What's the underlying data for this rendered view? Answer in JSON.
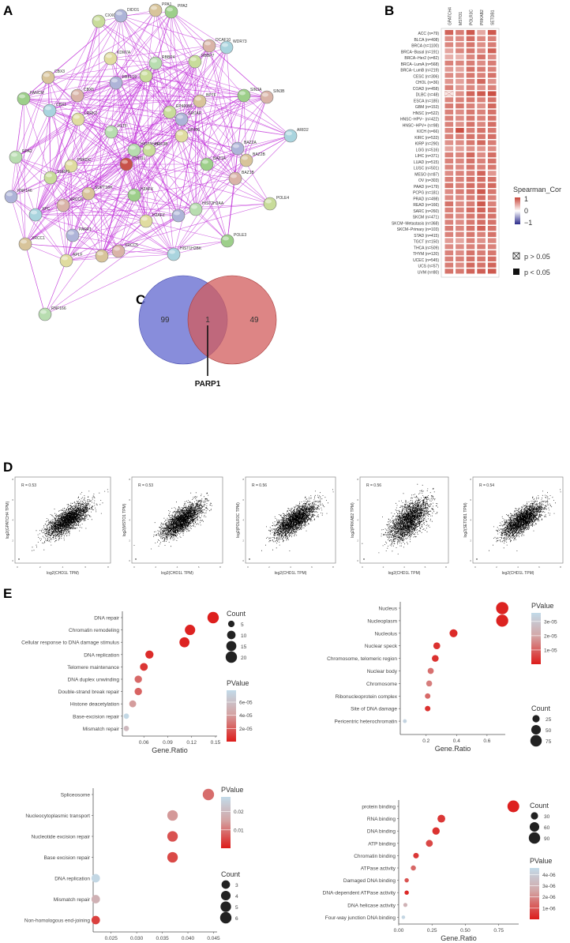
{
  "panels": {
    "a": "A",
    "b": "B",
    "c": "C",
    "d": "D",
    "e": "E"
  },
  "colors": {
    "edge": "#c030d8",
    "heat_high": "#c8463a",
    "heat_low": "#2a2a8a",
    "p_low": "#dd1c1a",
    "p_high": "#c2dbe9",
    "venn_left": "#6a70d2",
    "venn_right": "#d25c5c"
  },
  "network": {
    "nodes": [
      "CXXC1",
      "DIDO1",
      "PPA1",
      "PPA2",
      "DCAF10",
      "WDR73",
      "KDM7A",
      "RBBP4",
      "RBBP7",
      "FBXL19",
      "CBX3",
      "FANCM",
      "CBX5",
      "CBX1",
      "LRRK2",
      "HLTF",
      "EP400NL",
      "SRCAP",
      "BPTF",
      "SIN3A",
      "SIN3B",
      "ARID2",
      "EP400",
      "HIST1H4F",
      "H3F3B",
      "BAZ2A",
      "BAZ2B",
      "BAZ1A",
      "BAZ1B",
      "CHD1L",
      "PRKDC",
      "RPA2",
      "SSRP1",
      "RNF146",
      "SUPT16H",
      "H2AFX",
      "XRCC6",
      "XPC",
      "H2AFZ",
      "HIST2H2AA",
      "POLE4",
      "PARP1",
      "XRCC1",
      "POLE3",
      "XRCC5",
      "HIST1H2BK",
      "APLF",
      "RNF166"
    ]
  },
  "chart_data": [
    {
      "type": "heatmap",
      "title": "",
      "columns": [
        "GPATCH4",
        "MSTO1",
        "POLR3C",
        "PRKAB2",
        "SETDB1"
      ],
      "rows": [
        "ACC (n=79)",
        "BLCA (n=408)",
        "BRCA (n=1100)",
        "BRCA−Basal (n=191)",
        "BRCA−Her2 (n=82)",
        "BRCA−LumA (n=568)",
        "BRCA−LumB (n=219)",
        "CESC (n=306)",
        "CHOL (n=36)",
        "COAD (n=458)",
        "DLBC (n=48)",
        "ESCA (n=185)",
        "GBM (n=153)",
        "HNSC (n=522)",
        "HNSC−HPV− (n=422)",
        "HNSC−HPV+ (n=98)",
        "KICH (n=66)",
        "KIRC (n=533)",
        "KIRP (n=290)",
        "LGG (n=516)",
        "LIHC (n=371)",
        "LUAD (n=515)",
        "LUSC (n=501)",
        "MESO (n=87)",
        "OV (n=303)",
        "PAAD (n=179)",
        "PCPG (n=181)",
        "PRAD (n=498)",
        "READ (n=166)",
        "SARC (n=260)",
        "SKCM (n=471)",
        "SKCM−Metastasis (n=368)",
        "SKCM−Primary (n=103)",
        "STAD (n=415)",
        "TGCT (n=150)",
        "THCA (n=509)",
        "THYM (n=120)",
        "UCEC (n=545)",
        "UCS (n=57)",
        "UVM (n=80)"
      ],
      "values": [
        [
          0.62,
          0.52,
          0.66,
          0.35,
          0.66
        ],
        [
          0.45,
          0.46,
          0.58,
          0.47,
          0.5
        ],
        [
          0.48,
          0.46,
          0.55,
          0.45,
          0.52
        ],
        [
          0.36,
          0.48,
          0.55,
          0.46,
          0.63
        ],
        [
          0.32,
          0.3,
          0.48,
          0.56,
          0.46
        ],
        [
          0.5,
          0.48,
          0.52,
          0.46,
          0.52
        ],
        [
          0.4,
          0.36,
          0.56,
          0.52,
          0.5
        ],
        [
          0.46,
          0.44,
          0.54,
          0.5,
          0.56
        ],
        [
          0.42,
          0.38,
          0.5,
          0.6,
          0.44
        ],
        [
          0.5,
          0.4,
          0.48,
          0.44,
          0.5
        ],
        [
          0.05,
          0.44,
          0.62,
          0.66,
          0.7
        ],
        [
          0.48,
          0.5,
          0.54,
          0.5,
          0.56
        ],
        [
          0.52,
          0.54,
          0.5,
          0.44,
          0.6
        ],
        [
          0.5,
          0.46,
          0.54,
          0.5,
          0.56
        ],
        [
          0.5,
          0.46,
          0.54,
          0.5,
          0.56
        ],
        [
          0.5,
          0.44,
          0.56,
          0.48,
          0.58
        ],
        [
          0.48,
          0.7,
          0.52,
          0.56,
          0.54
        ],
        [
          0.5,
          0.5,
          0.56,
          0.54,
          0.58
        ],
        [
          0.44,
          0.46,
          0.54,
          0.6,
          0.52
        ],
        [
          0.36,
          0.38,
          0.44,
          0.42,
          0.46
        ],
        [
          0.5,
          0.48,
          0.6,
          0.46,
          0.58
        ],
        [
          0.5,
          0.48,
          0.56,
          0.5,
          0.56
        ],
        [
          0.48,
          0.46,
          0.54,
          0.5,
          0.54
        ],
        [
          0.46,
          0.5,
          0.52,
          0.62,
          0.42
        ],
        [
          0.5,
          0.5,
          0.56,
          0.58,
          0.56
        ],
        [
          0.54,
          0.5,
          0.58,
          0.56,
          0.6
        ],
        [
          0.46,
          0.52,
          0.56,
          0.66,
          0.54
        ],
        [
          0.46,
          0.46,
          0.52,
          0.58,
          0.5
        ],
        [
          0.56,
          0.46,
          0.52,
          0.66,
          0.5
        ],
        [
          0.5,
          0.48,
          0.58,
          0.62,
          0.56
        ],
        [
          0.5,
          0.46,
          0.54,
          0.58,
          0.56
        ],
        [
          0.5,
          0.46,
          0.54,
          0.58,
          0.56
        ],
        [
          0.52,
          0.48,
          0.56,
          0.62,
          0.56
        ],
        [
          0.5,
          0.48,
          0.54,
          0.5,
          0.56
        ],
        [
          0.4,
          0.36,
          0.5,
          0.44,
          0.48
        ],
        [
          0.46,
          0.46,
          0.5,
          0.52,
          0.5
        ],
        [
          0.5,
          0.46,
          0.56,
          0.52,
          0.54
        ],
        [
          0.5,
          0.5,
          0.56,
          0.54,
          0.58
        ],
        [
          0.52,
          0.46,
          0.6,
          0.56,
          0.62
        ],
        [
          0.56,
          0.54,
          0.62,
          0.64,
          0.66
        ]
      ],
      "nonsignificant": [
        [
          10,
          0
        ]
      ],
      "legend": {
        "title": "Spearman_Cor",
        "ticks": [
          "1",
          "0",
          "−1"
        ],
        "ns_label": "p > 0.05",
        "sig_label": "p < 0.05"
      }
    },
    {
      "type": "venn",
      "sets": [
        {
          "only": "99"
        },
        {
          "only": "49"
        }
      ],
      "intersection": "1",
      "annotation": "PARP1"
    },
    {
      "type": "scatter",
      "panels": [
        {
          "ylabel": "log2(GPATCH4 TPM)",
          "r": "R = 0.53"
        },
        {
          "ylabel": "log2(MSTO1 TPM)",
          "r": "R = 0.53"
        },
        {
          "ylabel": "log2(POLR3C TPM)",
          "r": "R = 0.56"
        },
        {
          "ylabel": "log2(PRKAB2 TPM)",
          "r": "R = 0.56"
        },
        {
          "ylabel": "log2(SETDB1 TPM)",
          "r": "R = 0.54"
        }
      ],
      "xlabel": "log2(CHD1L TPM)",
      "xticks": [
        "0",
        "2",
        "4",
        "6",
        "8"
      ],
      "yticks": [
        "0",
        "2",
        "4",
        "6",
        "8"
      ]
    },
    {
      "type": "scatter",
      "subtype": "dotplot",
      "xlabel": "Gene.Ratio",
      "xticks": [
        "0.06",
        "0.09",
        "0.12",
        "0.15"
      ],
      "xlim": [
        0.033,
        0.152
      ],
      "terms": [
        "DNA repair",
        "Chromatin remodeling",
        "Cellular response to DNA damage stimulus",
        "DNA replication",
        "Telomere maintenance",
        "DNA duplex unwinding",
        "Double-strand break repair",
        "Histone deacetylation",
        "Base-excision repair",
        "Mismatch repair"
      ],
      "gene_ratio": [
        0.147,
        0.118,
        0.111,
        0.067,
        0.06,
        0.053,
        0.053,
        0.046,
        0.038,
        0.038
      ],
      "count": [
        20,
        16,
        15,
        9,
        8,
        7,
        7,
        6,
        3,
        3
      ],
      "pvalue": [
        1e-06,
        2e-06,
        2e-06,
        5e-06,
        8e-06,
        2.4e-05,
        2.2e-05,
        4e-05,
        7.6e-05,
        5.5e-05
      ],
      "count_legend": {
        "title": "Count",
        "values": [
          "5",
          "10",
          "15",
          "20"
        ]
      },
      "p_legend": {
        "title": "PValue",
        "values": [
          "6e-05",
          "4e-05",
          "2e-05"
        ],
        "range": [
          0,
          7.8e-05
        ]
      }
    },
    {
      "type": "scatter",
      "subtype": "dotplot",
      "xlabel": "Gene.Ratio",
      "xticks": [
        "0.2",
        "0.4",
        "0.6"
      ],
      "xlim": [
        0.03,
        0.72
      ],
      "terms": [
        "Nucleus",
        "Nucleoplasm",
        "Nucleolus",
        "Nuclear speck",
        "Chromosome, telomeric region",
        "Nuclear body",
        "Chromosome",
        "Ribonucleoprotein complex",
        "Site of DNA damage",
        "Pericentric heterochromatin"
      ],
      "gene_ratio": [
        0.7,
        0.7,
        0.38,
        0.27,
        0.26,
        0.23,
        0.22,
        0.21,
        0.21,
        0.06
      ],
      "count": [
        90,
        86,
        32,
        22,
        21,
        16,
        15,
        12,
        12,
        4
      ],
      "pvalue": [
        1e-06,
        1e-06,
        2e-06,
        3e-06,
        3e-06,
        1.2e-05,
        1.4e-05,
        1.1e-05,
        3e-06,
        3.4e-05
      ],
      "count_legend": {
        "title": "Count",
        "values": [
          "25",
          "50",
          "75"
        ]
      },
      "p_legend": {
        "title": "PValue",
        "values": [
          "3e-05",
          "2e-05",
          "1e-05"
        ],
        "range": [
          0,
          3.6e-05
        ]
      }
    },
    {
      "type": "scatter",
      "subtype": "dotplot",
      "xlabel": "Gene.Ratio",
      "xticks": [
        "0.025",
        "0.030",
        "0.035",
        "0.040",
        "0.045"
      ],
      "xlim": [
        0.0215,
        0.0457
      ],
      "terms": [
        "Spliceosome",
        "Nucleocytoplasmic transport",
        "Nucleotide excision repair",
        "Base excision repair",
        "DNA replication",
        "Mismatch repair",
        "Non-homologous end-joining"
      ],
      "gene_ratio": [
        0.044,
        0.037,
        0.037,
        0.037,
        0.022,
        0.022,
        0.022
      ],
      "count": [
        6,
        5,
        5,
        5,
        3,
        3,
        3
      ],
      "pvalue": [
        0.009,
        0.014,
        0.006,
        0.005,
        0.027,
        0.018,
        0.004
      ],
      "count_legend": {
        "title": "Count",
        "values": [
          "3",
          "4",
          "5",
          "6"
        ]
      },
      "p_legend": {
        "title": "PValue",
        "values": [
          "0.02",
          "0.01"
        ],
        "range": [
          0,
          0.028
        ]
      }
    },
    {
      "type": "scatter",
      "subtype": "dotplot",
      "xlabel": "Gene.Ratio",
      "xticks": [
        "0.00",
        "0.25",
        "0.50",
        "0.75"
      ],
      "xlim": [
        0.0,
        0.9
      ],
      "terms": [
        "protein binding",
        "RNA binding",
        "DNA binding",
        "ATP binding",
        "Chromatin binding",
        "ATPase activity",
        "Damaged DNA binding",
        "DNA-dependent ATPase activity",
        "DNA helicase activity",
        "Four-way junction DNA binding"
      ],
      "gene_ratio": [
        0.86,
        0.32,
        0.28,
        0.23,
        0.13,
        0.11,
        0.06,
        0.06,
        0.05,
        0.035
      ],
      "count": [
        98,
        36,
        32,
        27,
        15,
        12,
        7,
        7,
        6,
        4
      ],
      "pvalue": [
        1e-07,
        5e-07,
        4e-07,
        8e-07,
        5e-07,
        1.4e-06,
        1e-06,
        2e-07,
        3e-06,
        4.4e-06
      ],
      "count_legend": {
        "title": "Count",
        "values": [
          "30",
          "60",
          "90"
        ]
      },
      "p_legend": {
        "title": "PValue",
        "values": [
          "4e-06",
          "3e-06",
          "2e-06",
          "1e-06"
        ],
        "range": [
          0,
          4.6e-06
        ]
      }
    }
  ]
}
